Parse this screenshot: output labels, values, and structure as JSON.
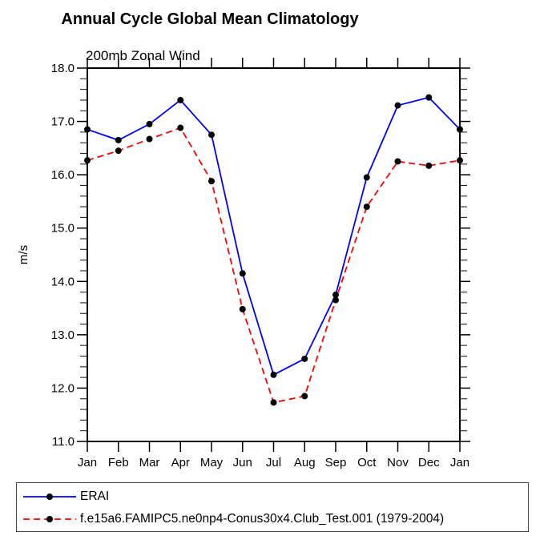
{
  "page": {
    "title": "Annual Cycle Global Mean Climatology",
    "subtitle": "200mb Zonal Wind"
  },
  "chart_data": {
    "type": "line",
    "title": "Annual Cycle Global Mean Climatology",
    "subtitle": "200mb Zonal Wind",
    "xlabel": "",
    "ylabel": "m/s",
    "categories": [
      "Jan",
      "Feb",
      "Mar",
      "Apr",
      "May",
      "Jun",
      "Jul",
      "Aug",
      "Sep",
      "Oct",
      "Nov",
      "Dec",
      "Jan"
    ],
    "series": [
      {
        "name": "ERAI",
        "color": "#0000ff",
        "line_style": "solid",
        "marker": "filled-circle",
        "marker_color": "#000000",
        "values": [
          16.85,
          16.65,
          16.95,
          17.4,
          16.75,
          14.15,
          12.25,
          12.55,
          13.75,
          15.95,
          17.3,
          17.45,
          16.85
        ]
      },
      {
        "name": "f.e15a6.FAMIPC5.ne0np4-Conus30x4.Club_Test.001 (1979-2004)",
        "color": "#ff0000",
        "line_style": "dashed",
        "marker": "filled-circle",
        "marker_color": "#000000",
        "values": [
          16.27,
          16.45,
          16.67,
          16.88,
          15.88,
          13.48,
          11.73,
          11.85,
          13.65,
          15.4,
          16.25,
          16.17,
          16.27
        ]
      }
    ],
    "ylim": [
      11.0,
      18.0
    ],
    "ytick_interval": 1.0,
    "ytick_minor_interval": 0.2,
    "ytick_labels": [
      "11.0",
      "12.0",
      "13.0",
      "14.0",
      "15.0",
      "16.0",
      "17.0",
      "18.0"
    ],
    "grid": false,
    "legend_position": "below-plot-left",
    "axis_color": "#000000",
    "frame": "box-with-outward-ticks"
  }
}
